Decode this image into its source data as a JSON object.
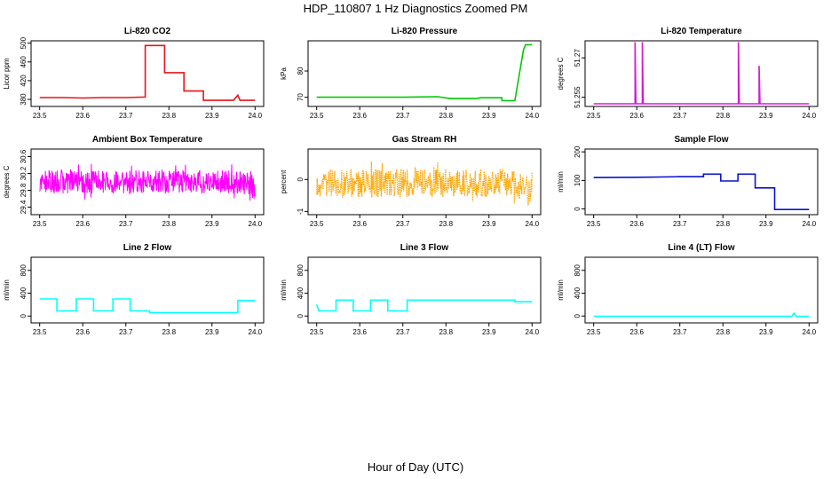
{
  "figure": {
    "title": "HDP_110807  1 Hz Diagnostics Zoomed PM",
    "xlabel": "Hour of Day (UTC)"
  },
  "chart_data": [
    {
      "type": "line",
      "title": "Li-820 CO2",
      "ylabel": "Licor ppm",
      "color": "#e8141a",
      "xlim": [
        23.48,
        24.02
      ],
      "ylim": [
        365,
        505
      ],
      "xticks": [
        "23.5",
        "23.6",
        "23.7",
        "23.8",
        "23.9",
        "24.0"
      ],
      "yticks": [
        380,
        420,
        460,
        500
      ],
      "series": [
        {
          "points": [
            [
              23.5,
              384
            ],
            [
              23.55,
              384
            ],
            [
              23.6,
              383
            ],
            [
              23.65,
              384
            ],
            [
              23.7,
              384
            ],
            [
              23.745,
              385
            ],
            [
              23.745,
              495
            ],
            [
              23.79,
              495
            ],
            [
              23.79,
              437
            ],
            [
              23.835,
              437
            ],
            [
              23.835,
              398
            ],
            [
              23.88,
              398
            ],
            [
              23.88,
              378
            ],
            [
              23.95,
              378
            ],
            [
              23.96,
              389
            ],
            [
              23.965,
              378
            ],
            [
              24.0,
              378
            ]
          ]
        }
      ]
    },
    {
      "type": "line",
      "title": "Li-820 Pressure",
      "ylabel": "kPa",
      "color": "#00c800",
      "xlim": [
        23.48,
        24.02
      ],
      "ylim": [
        66.5,
        91.5
      ],
      "xticks": [
        "23.5",
        "23.6",
        "23.7",
        "23.8",
        "23.9",
        "24.0"
      ],
      "yticks": [
        70,
        80
      ],
      "series": [
        {
          "points": [
            [
              23.5,
              70
            ],
            [
              23.7,
              70
            ],
            [
              23.78,
              70.2
            ],
            [
              23.81,
              69.5
            ],
            [
              23.87,
              69.5
            ],
            [
              23.88,
              69.8
            ],
            [
              23.93,
              69.8
            ],
            [
              23.93,
              68.7
            ],
            [
              23.96,
              68.7
            ],
            [
              23.98,
              88
            ],
            [
              23.985,
              90
            ],
            [
              24.0,
              90
            ]
          ]
        }
      ]
    },
    {
      "type": "line",
      "title": "Li-820 Temperature",
      "ylabel": "degrees C",
      "color": "#d21ed2",
      "xlim": [
        23.48,
        24.02
      ],
      "ylim": [
        51.2515,
        51.2765
      ],
      "xticks": [
        "23.5",
        "23.6",
        "23.7",
        "23.8",
        "23.9",
        "24.0"
      ],
      "yticks": [
        51.255,
        51.27
      ],
      "series": [
        {
          "points": [
            [
              23.5,
              51.2525
            ],
            [
              23.596,
              51.2525
            ],
            [
              23.596,
              51.276
            ],
            [
              23.598,
              51.2525
            ],
            [
              23.613,
              51.2525
            ],
            [
              23.613,
              51.276
            ],
            [
              23.615,
              51.2525
            ],
            [
              23.836,
              51.2525
            ],
            [
              23.836,
              51.276
            ],
            [
              23.838,
              51.2525
            ],
            [
              23.884,
              51.2525
            ],
            [
              23.884,
              51.267
            ],
            [
              23.886,
              51.2525
            ],
            [
              24.0,
              51.2525
            ]
          ]
        }
      ]
    },
    {
      "type": "line",
      "title": "Ambient Box Temperature",
      "ylabel": "degrees C",
      "color": "#ff00ff",
      "xlim": [
        23.48,
        24.02
      ],
      "ylim": [
        29.22,
        30.78
      ],
      "xticks": [
        "23.5",
        "23.6",
        "23.7",
        "23.8",
        "23.9",
        "24.0"
      ],
      "yticks": [
        29.4,
        29.8,
        30.2,
        30.6
      ],
      "noise": {
        "x": [
          23.5,
          24.0
        ],
        "center": 30.0,
        "amp": 0.28,
        "n": 600,
        "tailDrop": -0.3,
        "tailStart": 23.96
      }
    },
    {
      "type": "line",
      "title": "Gas Stream RH",
      "ylabel": "percent",
      "color": "#ffa500",
      "xlim": [
        23.48,
        24.02
      ],
      "ylim": [
        -1.1,
        0.95
      ],
      "xticks": [
        "23.5",
        "23.6",
        "23.7",
        "23.8",
        "23.9",
        "24.0"
      ],
      "yticks": [
        -1.0,
        0.0
      ],
      "noise": {
        "x": [
          23.5,
          24.0
        ],
        "center": -0.12,
        "amp": 0.45,
        "n": 500,
        "tailDrop": -0.5,
        "tailStart": 23.96,
        "dotted": true
      }
    },
    {
      "type": "line",
      "title": "Sample Flow",
      "ylabel": "ml/min",
      "color": "#0a14d2",
      "xlim": [
        23.48,
        24.02
      ],
      "ylim": [
        -20,
        210
      ],
      "xticks": [
        "23.5",
        "23.6",
        "23.7",
        "23.8",
        "23.9",
        "24.0"
      ],
      "yticks": [
        0,
        100,
        200
      ],
      "series": [
        {
          "points": [
            [
              23.5,
              110
            ],
            [
              23.6,
              111
            ],
            [
              23.7,
              113
            ],
            [
              23.755,
              113
            ],
            [
              23.755,
              122
            ],
            [
              23.795,
              122
            ],
            [
              23.795,
              98
            ],
            [
              23.835,
              98
            ],
            [
              23.835,
              122
            ],
            [
              23.875,
              122
            ],
            [
              23.875,
              74
            ],
            [
              23.92,
              74
            ],
            [
              23.92,
              -2
            ],
            [
              24.0,
              -2
            ]
          ]
        }
      ]
    },
    {
      "type": "line",
      "title": "Line 2 Flow",
      "ylabel": "ml/min",
      "color": "#00ffff",
      "xlim": [
        23.48,
        24.02
      ],
      "ylim": [
        -120,
        1030
      ],
      "xticks": [
        "23.5",
        "23.6",
        "23.7",
        "23.8",
        "23.9",
        "24.0"
      ],
      "yticks": [
        0,
        400,
        800
      ],
      "series": [
        {
          "points": [
            [
              23.5,
              300
            ],
            [
              23.54,
              300
            ],
            [
              23.54,
              90
            ],
            [
              23.585,
              90
            ],
            [
              23.585,
              300
            ],
            [
              23.625,
              300
            ],
            [
              23.625,
              90
            ],
            [
              23.67,
              90
            ],
            [
              23.67,
              300
            ],
            [
              23.71,
              300
            ],
            [
              23.71,
              90
            ],
            [
              23.755,
              90
            ],
            [
              23.755,
              60
            ],
            [
              23.96,
              60
            ],
            [
              23.96,
              270
            ],
            [
              24.0,
              270
            ]
          ]
        }
      ]
    },
    {
      "type": "line",
      "title": "Line 3 Flow",
      "ylabel": "ml/min",
      "color": "#00ffff",
      "xlim": [
        23.48,
        24.02
      ],
      "ylim": [
        -120,
        1030
      ],
      "xticks": [
        "23.5",
        "23.6",
        "23.7",
        "23.8",
        "23.9",
        "24.0"
      ],
      "yticks": [
        0,
        400,
        800
      ],
      "series": [
        {
          "points": [
            [
              23.5,
              200
            ],
            [
              23.505,
              90
            ],
            [
              23.545,
              90
            ],
            [
              23.545,
              280
            ],
            [
              23.585,
              280
            ],
            [
              23.585,
              90
            ],
            [
              23.625,
              90
            ],
            [
              23.625,
              280
            ],
            [
              23.665,
              280
            ],
            [
              23.665,
              90
            ],
            [
              23.71,
              90
            ],
            [
              23.71,
              280
            ],
            [
              23.96,
              280
            ],
            [
              23.96,
              250
            ],
            [
              24.0,
              250
            ]
          ]
        }
      ]
    },
    {
      "type": "line",
      "title": "Line 4 (LT) Flow",
      "ylabel": "ml/min",
      "color": "#00ffff",
      "xlim": [
        23.48,
        24.02
      ],
      "ylim": [
        -120,
        1030
      ],
      "xticks": [
        "23.5",
        "23.6",
        "23.7",
        "23.8",
        "23.9",
        "24.0"
      ],
      "yticks": [
        0,
        400,
        800
      ],
      "series": [
        {
          "points": [
            [
              23.5,
              -5
            ],
            [
              23.96,
              -5
            ],
            [
              23.965,
              50
            ],
            [
              23.97,
              -5
            ],
            [
              24.0,
              -5
            ]
          ]
        }
      ]
    }
  ]
}
